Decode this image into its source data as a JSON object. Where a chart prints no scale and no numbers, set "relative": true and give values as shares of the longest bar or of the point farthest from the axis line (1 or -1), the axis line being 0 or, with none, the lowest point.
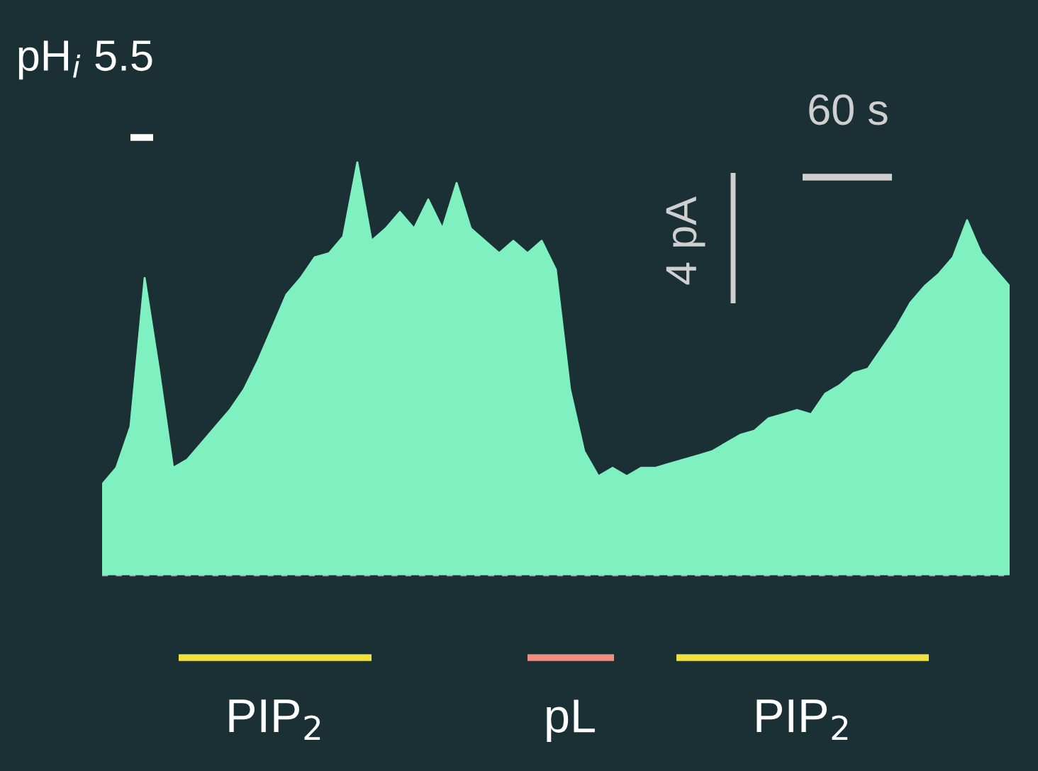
{
  "chart_data": {
    "type": "area",
    "relative": true,
    "color": "#7ff0c0",
    "categories": [
      null,
      null,
      null,
      null,
      null,
      null,
      null,
      null,
      null,
      null,
      null,
      null,
      null,
      null,
      null,
      null,
      null,
      null,
      null,
      null,
      null,
      null,
      null,
      null,
      null,
      null,
      null,
      null,
      null,
      null,
      null,
      null,
      null,
      null,
      null,
      null,
      null,
      null,
      null,
      null,
      null,
      null,
      null,
      null,
      null,
      null,
      null,
      null,
      null,
      null,
      null,
      null,
      null,
      null,
      null,
      null,
      null,
      null,
      null,
      null,
      null,
      null,
      null,
      null,
      null
    ],
    "values": [
      0.22,
      0.26,
      0.36,
      0.72,
      0.5,
      0.26,
      0.28,
      0.32,
      0.36,
      0.4,
      0.45,
      0.52,
      0.6,
      0.68,
      0.72,
      0.77,
      0.78,
      0.82,
      1.0,
      0.81,
      0.84,
      0.88,
      0.84,
      0.91,
      0.84,
      0.95,
      0.84,
      0.81,
      0.78,
      0.81,
      0.78,
      0.81,
      0.74,
      0.45,
      0.3,
      0.24,
      0.26,
      0.24,
      0.26,
      0.26,
      0.27,
      0.28,
      0.29,
      0.3,
      0.32,
      0.34,
      0.35,
      0.38,
      0.39,
      0.4,
      0.39,
      0.44,
      0.46,
      0.49,
      0.5,
      0.55,
      0.6,
      0.66,
      0.7,
      0.73,
      0.77,
      0.86,
      0.78,
      0.74,
      0.7
    ],
    "ref_lines": [
      {
        "axis": "y",
        "value": 0,
        "color": "#a0a8a8",
        "line_style": "dashed"
      }
    ],
    "annotations": [
      "pH$_{i}$ 5.5",
      "4 pA",
      "60 s",
      "PIP$_{2}$",
      "pL",
      "PIP$_{2}$"
    ]
  }
}
